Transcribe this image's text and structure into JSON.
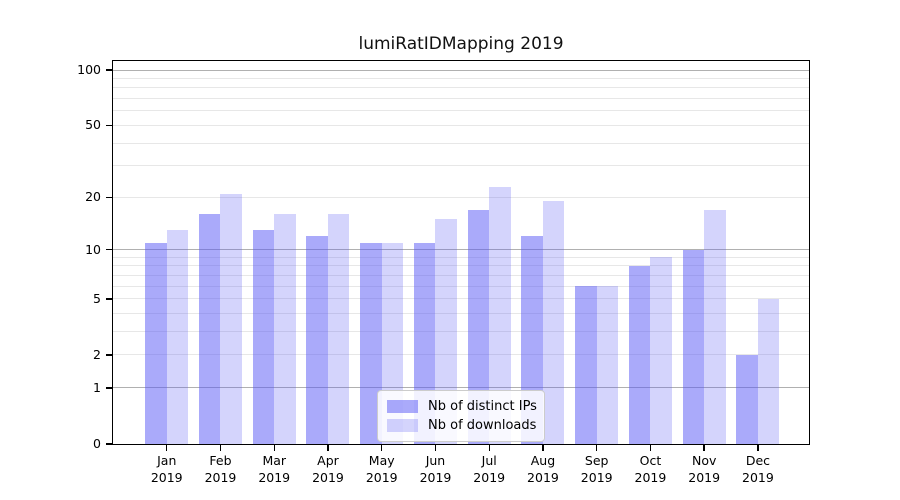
{
  "chart_data": {
    "type": "bar",
    "title": "lumiRatIDMapping 2019",
    "categories": [
      "Jan 2019",
      "Feb 2019",
      "Mar 2019",
      "Apr 2019",
      "May 2019",
      "Jun 2019",
      "Jul 2019",
      "Aug 2019",
      "Sep 2019",
      "Oct 2019",
      "Nov 2019",
      "Dec 2019"
    ],
    "series": [
      {
        "name": "Nb of distinct IPs",
        "color": "#5555F580",
        "values": [
          11,
          16,
          13,
          12,
          11,
          11,
          17,
          12,
          6,
          8,
          10,
          2
        ]
      },
      {
        "name": "Nb of downloads",
        "color": "#5555F540",
        "values": [
          13,
          21,
          16,
          16,
          11,
          15,
          23,
          19,
          6,
          9,
          17,
          5
        ]
      }
    ],
    "xlabel": "",
    "ylabel": "",
    "yscale": "log1p",
    "ylim": [
      0,
      112
    ],
    "yticks": [
      0,
      1,
      2,
      5,
      10,
      20,
      50,
      100
    ],
    "major_gridlines": [
      1,
      10,
      100
    ],
    "minor_gridlines": [
      2,
      3,
      4,
      5,
      6,
      7,
      8,
      9,
      20,
      30,
      40,
      50,
      60,
      70,
      80,
      90
    ],
    "grid": "on",
    "legend_position": "lower center",
    "colors": {
      "grid_major": "#b0b0b0",
      "grid_minor": "#e7e7e7",
      "axis": "#000000",
      "background": "#ffffff"
    }
  }
}
